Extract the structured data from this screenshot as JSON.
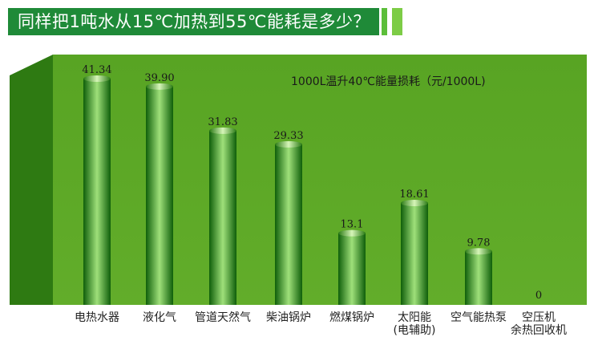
{
  "header": {
    "title": "同样把1吨水从15℃加热到55℃能耗是多少？"
  },
  "colors": {
    "banner": "#1f8a38",
    "panel": "#5fa826",
    "panel_side": "#2e7a12",
    "bar_dark": "#0f5f0a",
    "bar_light": "#9fe07a",
    "accent_light": "#7dcc46"
  },
  "chart_data": {
    "type": "bar",
    "title": "1000L温升40℃能量损耗（元/1000L)",
    "categories": [
      "电热水器",
      "液化气",
      "管道天然气",
      "柴油锅炉",
      "燃煤锅炉",
      "太阳能",
      "空气能热泵",
      "空压机"
    ],
    "category_sublabels": [
      "",
      "",
      "",
      "",
      "",
      "(电辅助)",
      "",
      "余热回收机"
    ],
    "values": [
      41.34,
      39.9,
      31.83,
      29.33,
      13.1,
      18.61,
      9.78,
      0
    ],
    "value_labels": [
      "41.34",
      "39.90",
      "31.83",
      "29.33",
      "13.1",
      "18.61",
      "9.78",
      "0"
    ],
    "ylim": [
      0,
      45
    ],
    "grid": false,
    "legend": "none"
  }
}
